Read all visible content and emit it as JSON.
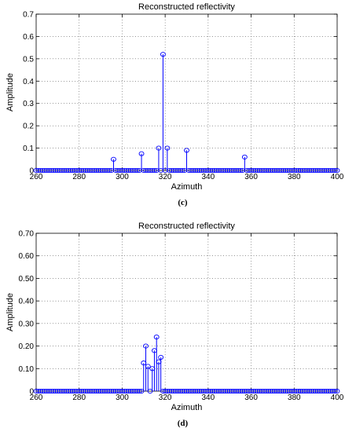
{
  "chart_data": [
    {
      "type": "stem",
      "title": "Reconstructed reflectivity",
      "xlabel": "Azimuth",
      "ylabel": "Amplitude",
      "panel_label": "(c)",
      "xlim": [
        260,
        400
      ],
      "ylim": [
        0,
        0.7
      ],
      "xticks": [
        260,
        280,
        300,
        320,
        340,
        360,
        380,
        400
      ],
      "xtick_labels": [
        "260",
        "280",
        "300",
        "320",
        "340",
        "360",
        "380",
        "400"
      ],
      "yticks": [
        0,
        0.1,
        0.2,
        0.3,
        0.4,
        0.5,
        0.6,
        0.7
      ],
      "ytick_labels": [
        "0",
        "0.1",
        "0.2",
        "0.3",
        "0.4",
        "0.5",
        "0.6",
        "0.7"
      ],
      "grid": true,
      "color": "#0000ff",
      "baseline_step": 1,
      "nonzero_x": [
        296,
        309,
        317,
        319,
        321,
        330,
        357
      ],
      "nonzero_y": [
        0.05,
        0.075,
        0.1,
        0.52,
        0.1,
        0.09,
        0.06
      ]
    },
    {
      "type": "stem",
      "title": "Reconstructed reflectivity",
      "xlabel": "Azimuth",
      "ylabel": "Amplitude",
      "panel_label": "(d)",
      "xlim": [
        260,
        400
      ],
      "ylim": [
        0,
        0.7
      ],
      "xticks": [
        260,
        280,
        300,
        320,
        340,
        360,
        380,
        400
      ],
      "xtick_labels": [
        "260",
        "280",
        "300",
        "320",
        "340",
        "360",
        "380",
        "400"
      ],
      "yticks": [
        0,
        0.1,
        0.2,
        0.3,
        0.4,
        0.5,
        0.6,
        0.7
      ],
      "ytick_labels": [
        "0",
        "0.10",
        "0.20",
        "0.30",
        "0.40",
        "0.50",
        "0.60",
        "0.70"
      ],
      "grid": true,
      "color": "#0000ff",
      "baseline_step": 1,
      "nonzero_x": [
        310,
        311,
        312,
        314,
        315,
        316,
        317,
        318
      ],
      "nonzero_y": [
        0.125,
        0.2,
        0.11,
        0.1,
        0.18,
        0.24,
        0.13,
        0.15
      ]
    }
  ]
}
